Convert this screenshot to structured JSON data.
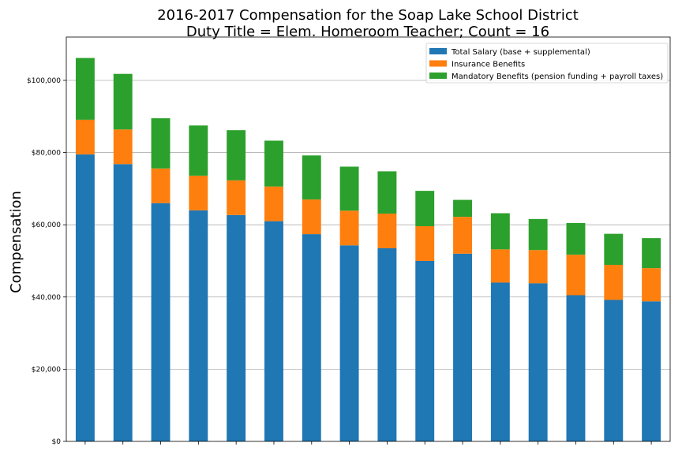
{
  "chart_data": {
    "type": "bar",
    "stacked": true,
    "title": [
      "2016-2017 Compensation for the Soap Lake School District",
      "Duty Title = Elem. Homeroom Teacher; Count = 16"
    ],
    "xlabel": "",
    "ylabel": "Compensation",
    "ylim": [
      0,
      112000
    ],
    "yticks": [
      0,
      20000,
      40000,
      60000,
      80000,
      100000
    ],
    "ytick_labels": [
      "$0",
      "$20,000",
      "$40,000",
      "$60,000",
      "$80,000",
      "$100,000"
    ],
    "grid": "horizontal",
    "legend_position": "top-right",
    "series": [
      {
        "name": "Total Salary (base + supplemental)",
        "color": "#1f77b4",
        "values": [
          79500,
          76800,
          66000,
          64000,
          62700,
          61000,
          57400,
          54300,
          53500,
          50000,
          52000,
          44000,
          43800,
          40500,
          39200,
          38800
        ]
      },
      {
        "name": "Insurance Benefits",
        "color": "#ff7f0e",
        "values": [
          9600,
          9600,
          9600,
          9600,
          9600,
          9600,
          9600,
          9600,
          9600,
          9600,
          10200,
          9200,
          9200,
          11200,
          9700,
          9200
        ]
      },
      {
        "name": "Mandatory Benefits (pension funding + payroll taxes)",
        "color": "#2ca02c",
        "values": [
          17100,
          15400,
          13900,
          13900,
          13900,
          12700,
          12200,
          12200,
          11700,
          9800,
          4700,
          10000,
          8600,
          8800,
          8600,
          8300
        ]
      }
    ]
  }
}
